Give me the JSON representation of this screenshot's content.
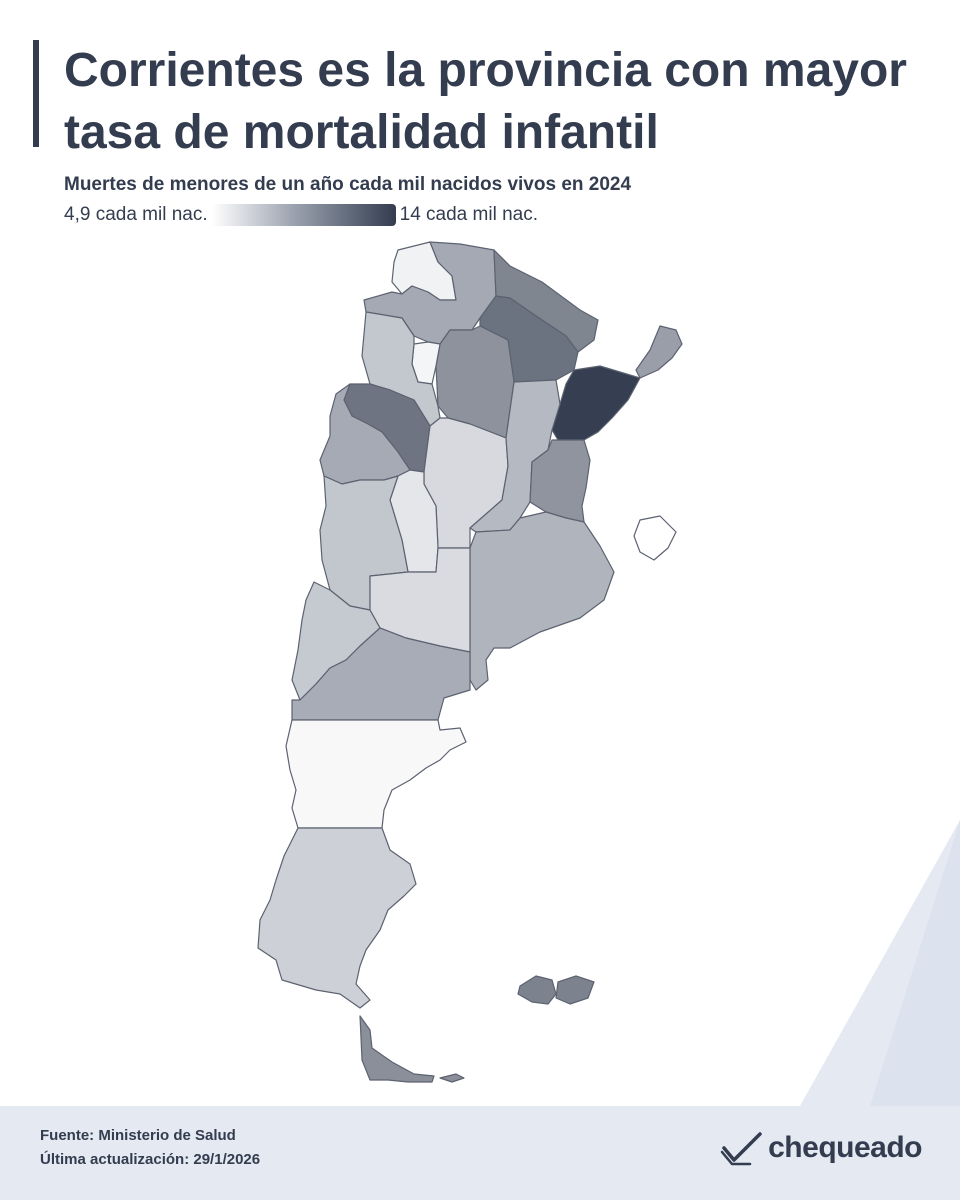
{
  "header": {
    "title": "Corrientes es la provincia con mayor tasa de mortalidad infantil",
    "subtitle": "Muertes de menores de un año cada mil nacidos vivos en 2024"
  },
  "legend": {
    "min_label": "4,9 cada mil nac.",
    "max_label": "14 cada mil nac.",
    "min_value": 4.9,
    "max_value": 14,
    "color_low": "#ffffff",
    "color_high": "#333d4f"
  },
  "map": {
    "region": "Argentina",
    "shading": "choropleth (light = lower rate, dark = higher rate)",
    "highlighted_province": "Corrientes"
  },
  "footer": {
    "source": "Fuente: Ministerio de Salud",
    "updated": "Última actualización: 29/1/2026"
  },
  "brand": {
    "name": "chequeado",
    "logo_icon": "check-logo-icon"
  },
  "colors": {
    "text": "#333d4f",
    "footer_bg": "#e4e9f2",
    "accent_dark": "#333d4f"
  }
}
